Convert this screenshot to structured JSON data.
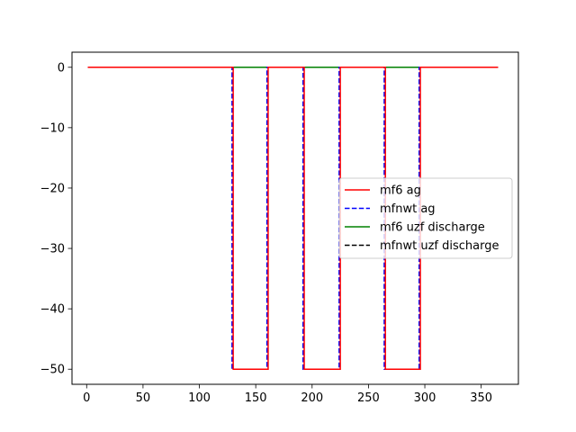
{
  "chart_data": {
    "type": "line",
    "title": "",
    "xlabel": "",
    "ylabel": "",
    "xlim": [
      -13,
      383
    ],
    "ylim": [
      -52.5,
      2.5
    ],
    "xticks": [
      0,
      50,
      100,
      150,
      200,
      250,
      300,
      350
    ],
    "yticks": [
      0,
      -10,
      -20,
      -30,
      -40,
      -50
    ],
    "xtick_labels": [
      "0",
      "50",
      "100",
      "150",
      "200",
      "250",
      "300",
      "350"
    ],
    "ytick_labels": [
      "0",
      "−10",
      "−20",
      "−30",
      "−40",
      "−50"
    ],
    "grid": false,
    "legend_position": "center-right",
    "series": [
      {
        "name": "mf6 ag",
        "color": "#ff0000",
        "style": "solid",
        "x": [
          1,
          130,
          130,
          161,
          161,
          193,
          193,
          225,
          225,
          265,
          265,
          296,
          296,
          365
        ],
        "y": [
          0,
          0,
          -50,
          -50,
          0,
          0,
          -50,
          -50,
          0,
          0,
          -50,
          -50,
          0,
          0
        ]
      },
      {
        "name": "mfnwt ag",
        "color": "#0000ff",
        "style": "dashed",
        "x": [
          1,
          129,
          129,
          160,
          160,
          192,
          192,
          224,
          224,
          264,
          264,
          295,
          295,
          365
        ],
        "y": [
          0,
          0,
          -50,
          -50,
          0,
          0,
          -50,
          -50,
          0,
          0,
          -50,
          -50,
          0,
          0
        ]
      },
      {
        "name": "mf6 uzf discharge",
        "color": "#008000",
        "style": "solid",
        "x": [
          1,
          365
        ],
        "y": [
          0,
          0
        ]
      },
      {
        "name": "mfnwt uzf discharge",
        "color": "#000000",
        "style": "dashed",
        "x": [
          1,
          365
        ],
        "y": [
          0,
          0
        ]
      }
    ]
  }
}
